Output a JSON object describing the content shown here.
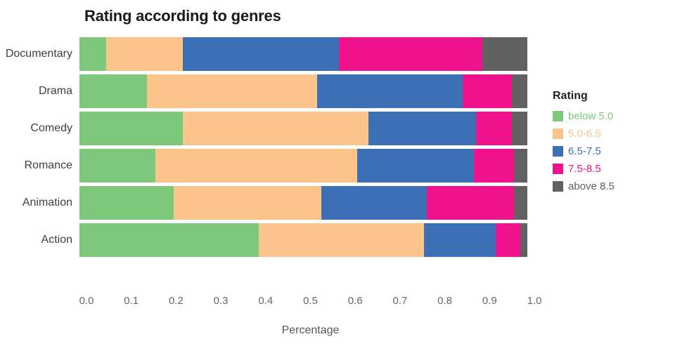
{
  "chart": {
    "title": "Rating according to genres",
    "xlabel": "Percentage",
    "legend_title": "Rating"
  },
  "chart_data": {
    "type": "bar",
    "orientation": "horizontal",
    "stacked": true,
    "title": "Rating according to genres",
    "xlabel": "Percentage",
    "ylabel": "",
    "xlim": [
      0,
      1
    ],
    "grid": false,
    "legend_position": "right",
    "legend_title": "Rating",
    "categories": [
      "Documentary",
      "Drama",
      "Comedy",
      "Romance",
      "Animation",
      "Action"
    ],
    "x_ticks": [
      "0.0",
      "0.1",
      "0.2",
      "0.3",
      "0.4",
      "0.5",
      "0.6",
      "0.7",
      "0.8",
      "0.9",
      "1.0"
    ],
    "series": [
      {
        "name": "below 5.0",
        "color": "#7DC87A",
        "values": [
          0.06,
          0.15,
          0.23,
          0.17,
          0.21,
          0.4
        ]
      },
      {
        "name": "5.0-6.5",
        "color": "#FAC48A",
        "values": [
          0.17,
          0.38,
          0.415,
          0.45,
          0.33,
          0.37
        ]
      },
      {
        "name": "6.5-7.5",
        "color": "#3C6FB6",
        "values": [
          0.35,
          0.325,
          0.24,
          0.26,
          0.235,
          0.16
        ]
      },
      {
        "name": "7.5-8.5",
        "color": "#F0128C",
        "values": [
          0.32,
          0.11,
          0.08,
          0.09,
          0.195,
          0.055
        ]
      },
      {
        "name": "above 8.5",
        "color": "#616161",
        "values": [
          0.1,
          0.035,
          0.035,
          0.03,
          0.03,
          0.015
        ]
      }
    ]
  }
}
